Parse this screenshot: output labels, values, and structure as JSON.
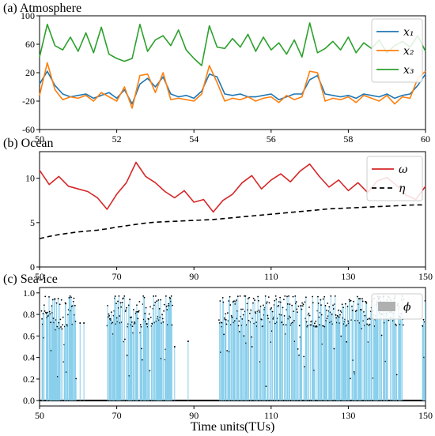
{
  "xlabel": "Time units(TUs)",
  "chart_data": [
    {
      "type": "line",
      "panel": "(a)",
      "title": "(a)  Atmosphere",
      "xlim": [
        50,
        60
      ],
      "ylim": [
        -60,
        100
      ],
      "xticks": [
        50,
        52,
        54,
        56,
        58,
        60
      ],
      "yticks": [
        -60,
        -20,
        20,
        60,
        100
      ],
      "grid": false,
      "legend": "top-right",
      "x": [
        50.0,
        50.2,
        50.4,
        50.6,
        50.8,
        51.0,
        51.2,
        51.4,
        51.6,
        51.8,
        52.0,
        52.2,
        52.4,
        52.6,
        52.8,
        53.0,
        53.2,
        53.4,
        53.6,
        53.8,
        54.0,
        54.2,
        54.4,
        54.6,
        54.8,
        55.0,
        55.2,
        55.4,
        55.6,
        55.8,
        56.0,
        56.2,
        56.4,
        56.6,
        56.8,
        57.0,
        57.2,
        57.4,
        57.6,
        57.8,
        58.0,
        58.2,
        58.4,
        58.6,
        58.8,
        59.0,
        59.2,
        59.4,
        59.6,
        59.8,
        60.0
      ],
      "series": [
        {
          "name": "x1",
          "label": "x₁",
          "color": "#1f77b4",
          "values": [
            4,
            22,
            2,
            -10,
            -14,
            -12,
            -10,
            -16,
            -12,
            -8,
            -16,
            -4,
            -24,
            4,
            12,
            0,
            14,
            -10,
            -14,
            -12,
            -16,
            -6,
            18,
            14,
            -10,
            -12,
            -10,
            -14,
            -14,
            -12,
            -10,
            -18,
            -14,
            -10,
            -10,
            10,
            16,
            -10,
            -12,
            -14,
            -12,
            -16,
            -10,
            -12,
            -14,
            -10,
            -16,
            -12,
            -10,
            2,
            18
          ]
        },
        {
          "name": "x2",
          "label": "x₂",
          "color": "#ff7f0e",
          "values": [
            -12,
            34,
            -4,
            -18,
            -14,
            -16,
            -12,
            -20,
            -8,
            -14,
            -20,
            0,
            -30,
            16,
            18,
            -8,
            20,
            -18,
            -16,
            -18,
            -20,
            -10,
            30,
            6,
            -20,
            -16,
            -18,
            -14,
            -20,
            -16,
            -14,
            -22,
            -12,
            -18,
            -14,
            22,
            20,
            -20,
            -16,
            -18,
            -14,
            -22,
            -12,
            -16,
            -20,
            -12,
            -24,
            -14,
            -16,
            12,
            22
          ]
        },
        {
          "name": "x3",
          "label": "x₃",
          "color": "#2ca02c",
          "values": [
            42,
            88,
            58,
            52,
            70,
            50,
            76,
            48,
            84,
            46,
            40,
            36,
            40,
            88,
            50,
            66,
            72,
            58,
            80,
            52,
            40,
            30,
            86,
            56,
            54,
            68,
            56,
            74,
            50,
            70,
            52,
            62,
            46,
            66,
            42,
            90,
            48,
            54,
            64,
            52,
            70,
            48,
            62,
            54,
            66,
            48,
            58,
            64,
            56,
            72,
            50
          ]
        }
      ]
    },
    {
      "type": "line",
      "panel": "(b)",
      "title": "(b)  Ocean",
      "xlim": [
        50,
        150
      ],
      "ylim": [
        0,
        13
      ],
      "xticks": [
        50,
        70,
        90,
        110,
        130,
        150
      ],
      "yticks": [
        0,
        5,
        10
      ],
      "grid": false,
      "legend": "top-right",
      "x": [
        50,
        52.5,
        55,
        57.5,
        60,
        62.5,
        65,
        67.5,
        70,
        72.5,
        75,
        77.5,
        80,
        82.5,
        85,
        87.5,
        90,
        92.5,
        95,
        97.5,
        100,
        102.5,
        105,
        107.5,
        110,
        112.5,
        115,
        117.5,
        120,
        122.5,
        125,
        127.5,
        130,
        132.5,
        135,
        137.5,
        140,
        142.5,
        145,
        147.5,
        150
      ],
      "series": [
        {
          "name": "omega",
          "label": "ω",
          "color": "#d62728",
          "style": "solid",
          "values": [
            10.9,
            9.3,
            10.2,
            9.1,
            8.8,
            8.5,
            7.8,
            6.5,
            8.2,
            9.5,
            11.8,
            10.2,
            9.5,
            8.5,
            7.8,
            8.6,
            7.3,
            7.6,
            6.2,
            7.5,
            8.2,
            9.5,
            10.3,
            8.8,
            9.8,
            10.5,
            9.6,
            10.8,
            11.6,
            10.2,
            9.0,
            9.8,
            8.6,
            9.5,
            8.4,
            9.7,
            10.1,
            9.2,
            8.1,
            7.6,
            9.1
          ]
        },
        {
          "name": "eta",
          "label": "η",
          "color": "#000000",
          "style": "dashed",
          "values": [
            3.2,
            3.45,
            3.65,
            3.8,
            3.95,
            4.05,
            4.15,
            4.3,
            4.5,
            4.65,
            4.8,
            4.95,
            5.05,
            5.1,
            5.15,
            5.2,
            5.25,
            5.3,
            5.35,
            5.45,
            5.55,
            5.65,
            5.75,
            5.85,
            5.95,
            6.05,
            6.15,
            6.25,
            6.35,
            6.45,
            6.55,
            6.6,
            6.65,
            6.7,
            6.75,
            6.8,
            6.85,
            6.9,
            6.95,
            7.0,
            7.0
          ]
        }
      ]
    },
    {
      "type": "bar",
      "panel": "(c)",
      "title": "(c)  Sea-ice",
      "xlim": [
        50,
        150
      ],
      "ylim": [
        -0.05,
        1.05
      ],
      "xticks": [
        50,
        70,
        90,
        110,
        130,
        150
      ],
      "yticks": [
        0.0,
        0.2,
        0.4,
        0.6,
        0.8,
        1.0
      ],
      "grid": false,
      "legend": "top-right",
      "series": [
        {
          "name": "phi",
          "label": "ϕ",
          "color": "#87ceeb",
          "marker_color": "#000000",
          "active_intervals": [
            [
              50.5,
              59.5
            ],
            [
              67.5,
              84.5
            ],
            [
              96.5,
              144.5
            ],
            [
              149.2,
              150
            ]
          ],
          "typical_value": 0.85,
          "isolated_points": [
            [
              60.5,
              0.72
            ],
            [
              61.5,
              0.72
            ],
            [
              88.5,
              0.55
            ],
            [
              85.0,
              0.5
            ]
          ]
        }
      ]
    }
  ]
}
